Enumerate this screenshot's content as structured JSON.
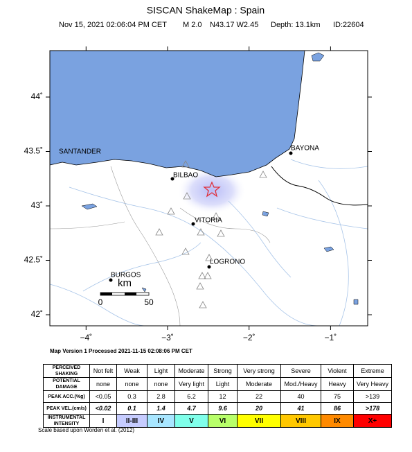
{
  "header": {
    "title": "SISCAN ShakeMap : Spain",
    "date": "Nov 15, 2021 02:06:04 PM CET",
    "magnitude": "M 2.0",
    "location": "N43.17 W2.45",
    "depth": "Depth: 13.1km",
    "id": "ID:22604"
  },
  "map": {
    "lon_ticks": [
      {
        "value": -4,
        "label": "−4˚"
      },
      {
        "value": -3,
        "label": "−3˚"
      },
      {
        "value": -2,
        "label": "−2˚"
      },
      {
        "value": -1,
        "label": "−1˚"
      }
    ],
    "lat_ticks": [
      {
        "value": 44,
        "label": "44˚"
      },
      {
        "value": 43.5,
        "label": "43.5˚"
      },
      {
        "value": 43,
        "label": "43˚"
      },
      {
        "value": 42.5,
        "label": "42.5˚"
      },
      {
        "value": 42,
        "label": "42˚"
      }
    ],
    "cities": [
      "SANTANDER",
      "BILBAO",
      "BAYONA",
      "VITORIA",
      "LOGRONO",
      "BURGOS"
    ],
    "scale": {
      "unit": "km",
      "labels": [
        "0",
        "50"
      ]
    },
    "version": "Map Version 1 Processed 2021-11-15 02:08:06 PM CET"
  },
  "legend": {
    "row_labels": [
      "PERCEIVED SHAKING",
      "POTENTIAL DAMAGE",
      "PEAK ACC.(%g)",
      "PEAK VEL.(cm/s)",
      "INSTRUMENTAL INTENSITY"
    ],
    "rows": [
      [
        "Not felt",
        "Weak",
        "Light",
        "Moderate",
        "Strong",
        "Very strong",
        "Severe",
        "Violent",
        "Extreme"
      ],
      [
        "none",
        "none",
        "none",
        "Very light",
        "Light",
        "Moderate",
        "Mod./Heavy",
        "Heavy",
        "Very Heavy"
      ],
      [
        "<0.05",
        "0.3",
        "2.8",
        "6.2",
        "12",
        "22",
        "40",
        "75",
        ">139"
      ],
      [
        "<0.02",
        "0.1",
        "1.4",
        "4.7",
        "9.6",
        "20",
        "41",
        "86",
        ">178"
      ],
      [
        "I",
        "II-III",
        "IV",
        "V",
        "VI",
        "VII",
        "VIII",
        "IX",
        "X+"
      ]
    ],
    "intensity_colors": [
      "#ffffff",
      "#c6ccff",
      "#a8e6ff",
      "#80ffea",
      "#b8ff6a",
      "#ffff00",
      "#ffc800",
      "#ff8a00",
      "#ff0000"
    ]
  },
  "footnote": "Scale based upon Worden et al. (2012)"
}
